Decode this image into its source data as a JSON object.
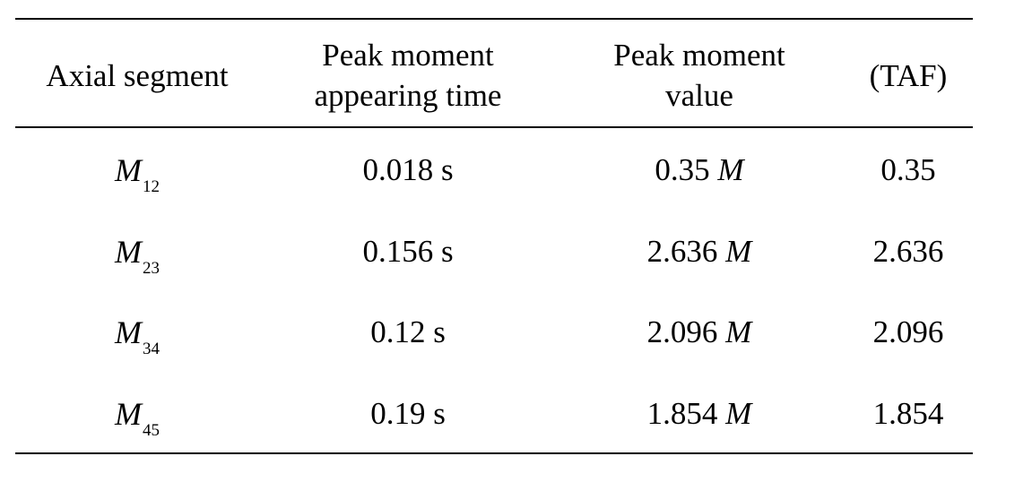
{
  "table": {
    "headers": [
      [
        "Axial segment"
      ],
      [
        "Peak moment",
        "appearing time"
      ],
      [
        "Peak moment",
        "value"
      ],
      [
        "(TAF)"
      ]
    ],
    "rows": [
      {
        "segment_symbol": "M",
        "segment_sub": "12",
        "time": "0.018 s",
        "value_num": "0.35",
        "value_unit": "M",
        "taf": "0.35"
      },
      {
        "segment_symbol": "M",
        "segment_sub": "23",
        "time": "0.156 s",
        "value_num": "2.636",
        "value_unit": "M",
        "taf": "2.636"
      },
      {
        "segment_symbol": "M",
        "segment_sub": "34",
        "time": "0.12 s",
        "value_num": "2.096",
        "value_unit": "M",
        "taf": "2.096"
      },
      {
        "segment_symbol": "M",
        "segment_sub": "45",
        "time": "0.19 s",
        "value_num": "1.854",
        "value_unit": "M",
        "taf": "1.854"
      }
    ]
  }
}
